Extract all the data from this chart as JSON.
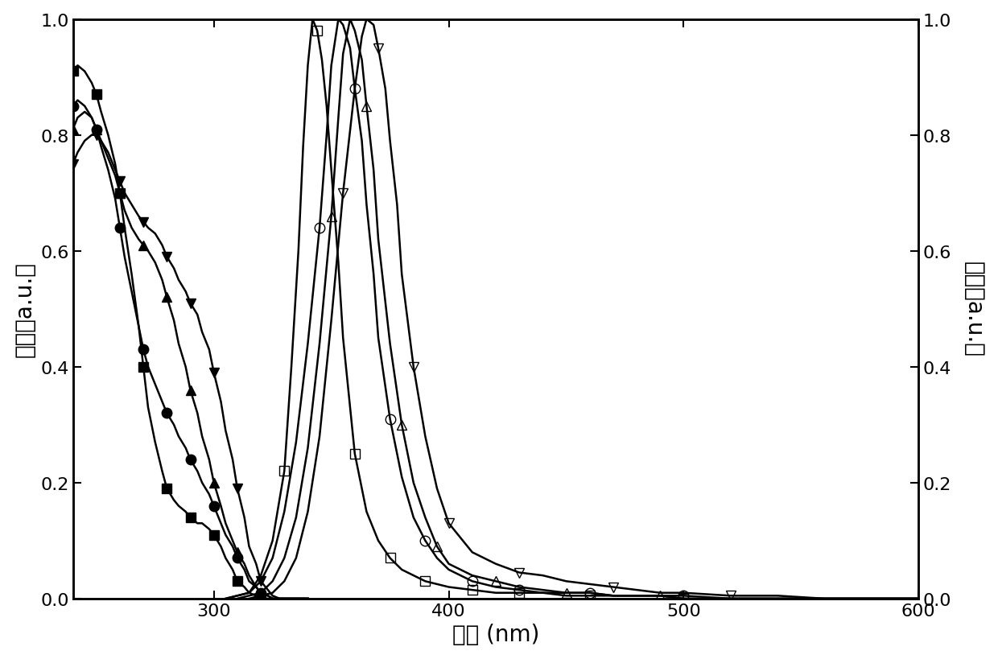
{
  "xlim": [
    240,
    600
  ],
  "ylim": [
    0.0,
    1.0
  ],
  "xlabel": "波长 (nm)",
  "ylabel_left": "吸收（a.u.）",
  "ylabel_right": "发射（a.u.）",
  "xticks": [
    300,
    400,
    500,
    600
  ],
  "yticks": [
    0.0,
    0.2,
    0.4,
    0.6,
    0.8,
    1.0
  ],
  "background": "#ffffff",
  "abs_series": {
    "filled_square": {
      "x": [
        240,
        242,
        245,
        248,
        250,
        252,
        255,
        258,
        260,
        262,
        265,
        268,
        270,
        272,
        275,
        278,
        280,
        283,
        285,
        288,
        290,
        293,
        295,
        298,
        300,
        303,
        305,
        308,
        310,
        313,
        315,
        318,
        320,
        323,
        325,
        328,
        330,
        335,
        340
      ],
      "y": [
        0.91,
        0.92,
        0.91,
        0.89,
        0.87,
        0.84,
        0.8,
        0.75,
        0.7,
        0.64,
        0.56,
        0.47,
        0.4,
        0.33,
        0.27,
        0.22,
        0.19,
        0.17,
        0.16,
        0.15,
        0.14,
        0.13,
        0.13,
        0.12,
        0.11,
        0.09,
        0.07,
        0.05,
        0.03,
        0.02,
        0.01,
        0.005,
        0.0,
        0.0,
        0.0,
        0.0,
        0.0,
        0.0,
        0.0
      ]
    },
    "filled_circle": {
      "x": [
        240,
        242,
        245,
        248,
        250,
        252,
        255,
        258,
        260,
        262,
        265,
        268,
        270,
        272,
        275,
        278,
        280,
        283,
        285,
        288,
        290,
        293,
        295,
        298,
        300,
        303,
        305,
        308,
        310,
        313,
        315,
        318,
        320,
        323,
        325,
        328,
        330,
        335,
        340
      ],
      "y": [
        0.85,
        0.86,
        0.85,
        0.83,
        0.81,
        0.78,
        0.74,
        0.69,
        0.64,
        0.59,
        0.53,
        0.47,
        0.43,
        0.4,
        0.37,
        0.34,
        0.32,
        0.3,
        0.28,
        0.26,
        0.24,
        0.22,
        0.2,
        0.18,
        0.16,
        0.13,
        0.11,
        0.09,
        0.07,
        0.05,
        0.03,
        0.02,
        0.01,
        0.005,
        0.0,
        0.0,
        0.0,
        0.0,
        0.0
      ]
    },
    "filled_triangle_up": {
      "x": [
        240,
        242,
        245,
        248,
        250,
        252,
        255,
        258,
        260,
        262,
        265,
        268,
        270,
        272,
        275,
        278,
        280,
        283,
        285,
        288,
        290,
        293,
        295,
        298,
        300,
        303,
        305,
        308,
        310,
        313,
        315,
        318,
        320,
        323,
        325,
        328,
        330,
        335,
        340
      ],
      "y": [
        0.81,
        0.83,
        0.84,
        0.83,
        0.81,
        0.79,
        0.76,
        0.73,
        0.7,
        0.67,
        0.64,
        0.62,
        0.61,
        0.6,
        0.58,
        0.55,
        0.52,
        0.48,
        0.44,
        0.4,
        0.36,
        0.32,
        0.28,
        0.24,
        0.2,
        0.16,
        0.13,
        0.1,
        0.08,
        0.06,
        0.04,
        0.02,
        0.01,
        0.005,
        0.0,
        0.0,
        0.0,
        0.0,
        0.0
      ]
    },
    "filled_triangle_down": {
      "x": [
        240,
        242,
        245,
        248,
        250,
        252,
        255,
        258,
        260,
        262,
        265,
        268,
        270,
        272,
        275,
        278,
        280,
        283,
        285,
        288,
        290,
        293,
        295,
        298,
        300,
        303,
        305,
        308,
        310,
        313,
        315,
        318,
        320,
        323,
        325,
        328,
        330,
        335,
        340
      ],
      "y": [
        0.75,
        0.77,
        0.79,
        0.8,
        0.8,
        0.79,
        0.77,
        0.74,
        0.72,
        0.7,
        0.68,
        0.66,
        0.65,
        0.64,
        0.63,
        0.61,
        0.59,
        0.57,
        0.55,
        0.53,
        0.51,
        0.49,
        0.46,
        0.43,
        0.39,
        0.34,
        0.29,
        0.24,
        0.19,
        0.14,
        0.09,
        0.06,
        0.03,
        0.015,
        0.005,
        0.0,
        0.0,
        0.0,
        0.0
      ]
    }
  },
  "em_series": {
    "open_square": {
      "x": [
        305,
        310,
        315,
        320,
        325,
        330,
        333,
        336,
        338,
        340,
        342,
        344,
        346,
        348,
        350,
        353,
        355,
        358,
        360,
        365,
        370,
        375,
        380,
        385,
        390,
        395,
        400,
        410,
        420,
        430,
        440,
        450,
        460,
        470,
        480,
        490,
        500,
        520,
        540,
        560,
        580,
        600
      ],
      "y": [
        0.0,
        0.005,
        0.01,
        0.04,
        0.1,
        0.22,
        0.4,
        0.6,
        0.78,
        0.92,
        1.0,
        0.98,
        0.93,
        0.85,
        0.74,
        0.58,
        0.45,
        0.33,
        0.25,
        0.15,
        0.1,
        0.07,
        0.05,
        0.04,
        0.03,
        0.025,
        0.02,
        0.015,
        0.01,
        0.01,
        0.01,
        0.005,
        0.005,
        0.005,
        0.005,
        0.005,
        0.0,
        0.0,
        0.0,
        0.0,
        0.0,
        0.0
      ]
    },
    "open_circle": {
      "x": [
        305,
        310,
        315,
        320,
        325,
        330,
        335,
        340,
        345,
        348,
        350,
        353,
        355,
        358,
        360,
        363,
        365,
        368,
        370,
        375,
        380,
        385,
        390,
        395,
        400,
        410,
        420,
        430,
        440,
        450,
        460,
        470,
        480,
        490,
        500,
        520,
        540,
        560,
        580,
        600
      ],
      "y": [
        0.0,
        0.005,
        0.01,
        0.03,
        0.07,
        0.15,
        0.27,
        0.44,
        0.64,
        0.8,
        0.92,
        1.0,
        0.99,
        0.95,
        0.88,
        0.79,
        0.68,
        0.56,
        0.45,
        0.31,
        0.21,
        0.14,
        0.1,
        0.07,
        0.05,
        0.03,
        0.02,
        0.015,
        0.01,
        0.01,
        0.01,
        0.005,
        0.005,
        0.005,
        0.005,
        0.0,
        0.0,
        0.0,
        0.0,
        0.0
      ]
    },
    "open_triangle_up": {
      "x": [
        310,
        315,
        320,
        325,
        330,
        335,
        340,
        345,
        350,
        353,
        355,
        358,
        360,
        363,
        365,
        368,
        370,
        375,
        380,
        385,
        390,
        395,
        400,
        410,
        420,
        430,
        440,
        450,
        460,
        470,
        480,
        490,
        500,
        520,
        540,
        560,
        580,
        600
      ],
      "y": [
        0.0,
        0.005,
        0.01,
        0.03,
        0.07,
        0.14,
        0.26,
        0.44,
        0.66,
        0.83,
        0.94,
        1.0,
        0.98,
        0.93,
        0.85,
        0.74,
        0.62,
        0.44,
        0.3,
        0.2,
        0.14,
        0.09,
        0.06,
        0.04,
        0.03,
        0.02,
        0.015,
        0.01,
        0.01,
        0.005,
        0.005,
        0.005,
        0.0,
        0.0,
        0.0,
        0.0,
        0.0,
        0.0
      ]
    },
    "open_triangle_down": {
      "x": [
        315,
        320,
        325,
        330,
        335,
        340,
        345,
        350,
        355,
        360,
        363,
        365,
        368,
        370,
        373,
        375,
        378,
        380,
        385,
        390,
        395,
        400,
        410,
        420,
        430,
        440,
        450,
        460,
        470,
        480,
        490,
        500,
        520,
        540,
        560,
        580,
        600
      ],
      "y": [
        0.0,
        0.005,
        0.01,
        0.03,
        0.07,
        0.15,
        0.28,
        0.48,
        0.7,
        0.88,
        0.97,
        1.0,
        0.99,
        0.95,
        0.88,
        0.79,
        0.68,
        0.56,
        0.4,
        0.28,
        0.19,
        0.13,
        0.08,
        0.06,
        0.045,
        0.04,
        0.03,
        0.025,
        0.02,
        0.015,
        0.01,
        0.01,
        0.005,
        0.005,
        0.0,
        0.0,
        0.0
      ]
    }
  },
  "marker_x_abs": {
    "filled_square": [
      240,
      250,
      260,
      270,
      280,
      290,
      300,
      310,
      320
    ],
    "filled_circle": [
      240,
      250,
      260,
      270,
      280,
      290,
      300,
      310,
      320
    ],
    "filled_triangle_up": [
      240,
      250,
      260,
      270,
      280,
      290,
      300,
      310,
      320
    ],
    "filled_triangle_down": [
      240,
      250,
      260,
      270,
      280,
      290,
      300,
      310,
      320
    ]
  },
  "marker_x_em": {
    "open_square": [
      330,
      345,
      360,
      375,
      390,
      410,
      430,
      460,
      500
    ],
    "open_circle": [
      345,
      360,
      375,
      390,
      410,
      430,
      460,
      500
    ],
    "open_triangle_up": [
      350,
      365,
      380,
      395,
      420,
      450,
      490
    ],
    "open_triangle_down": [
      355,
      370,
      385,
      400,
      430,
      470,
      520
    ]
  }
}
